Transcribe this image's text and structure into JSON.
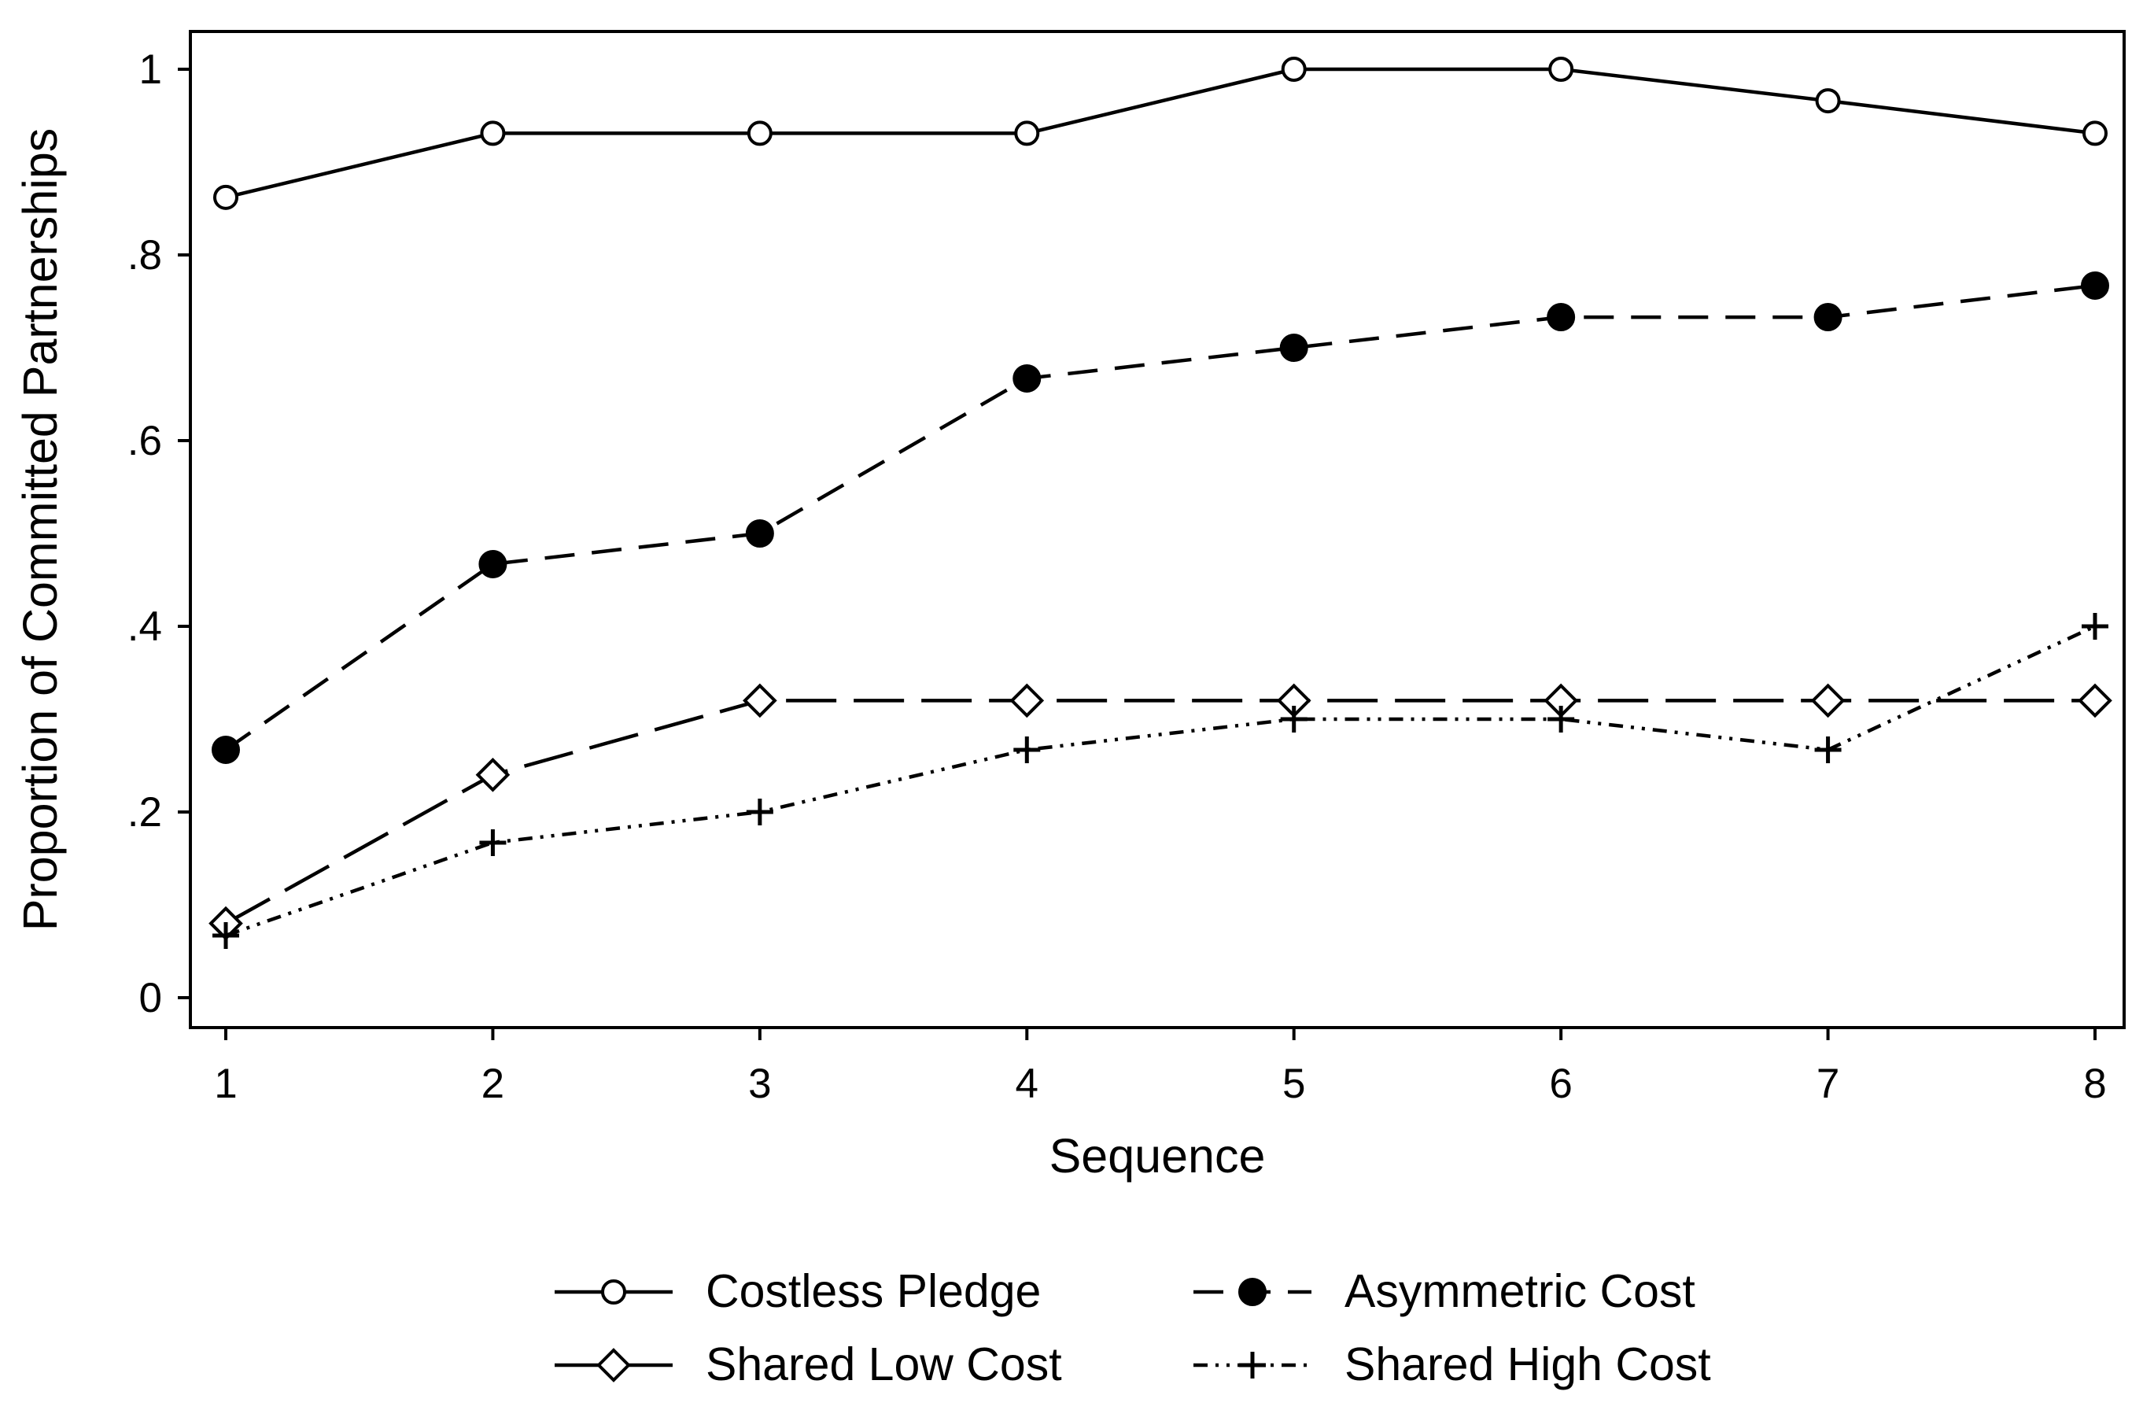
{
  "chart_data": {
    "type": "line",
    "title": "",
    "xlabel": "Sequence",
    "ylabel": "Proportion of Committed Partnerships",
    "x": [
      1,
      2,
      3,
      4,
      5,
      6,
      7,
      8
    ],
    "xlim": [
      1,
      8
    ],
    "ylim": [
      0,
      1
    ],
    "x_ticks": [
      "1",
      "2",
      "3",
      "4",
      "5",
      "6",
      "7",
      "8"
    ],
    "y_ticks": [
      {
        "value": 0,
        "label": "0"
      },
      {
        "value": 0.2,
        "label": ".2"
      },
      {
        "value": 0.4,
        "label": ".4"
      },
      {
        "value": 0.6,
        "label": ".6"
      },
      {
        "value": 0.8,
        "label": ".8"
      },
      {
        "value": 1,
        "label": "1"
      }
    ],
    "grid": false,
    "legend_position": "bottom",
    "series": [
      {
        "name": "Costless Pledge",
        "values": [
          0.862,
          0.931,
          0.931,
          0.931,
          1.0,
          1.0,
          0.966,
          0.931
        ],
        "marker": "circle-open",
        "line_style": "solid"
      },
      {
        "name": "Asymmetric Cost",
        "values": [
          0.267,
          0.467,
          0.5,
          0.667,
          0.7,
          0.733,
          0.733,
          0.767
        ],
        "marker": "circle-filled",
        "line_style": "dashed"
      },
      {
        "name": "Shared Low Cost",
        "values": [
          0.08,
          0.24,
          0.32,
          0.32,
          0.32,
          0.32,
          0.32,
          0.32
        ],
        "marker": "diamond-open",
        "line_style": "long-dash"
      },
      {
        "name": "Shared High Cost",
        "values": [
          0.067,
          0.167,
          0.2,
          0.267,
          0.3,
          0.3,
          0.267,
          0.4
        ],
        "marker": "plus",
        "line_style": "dash-dot-dot"
      }
    ]
  }
}
